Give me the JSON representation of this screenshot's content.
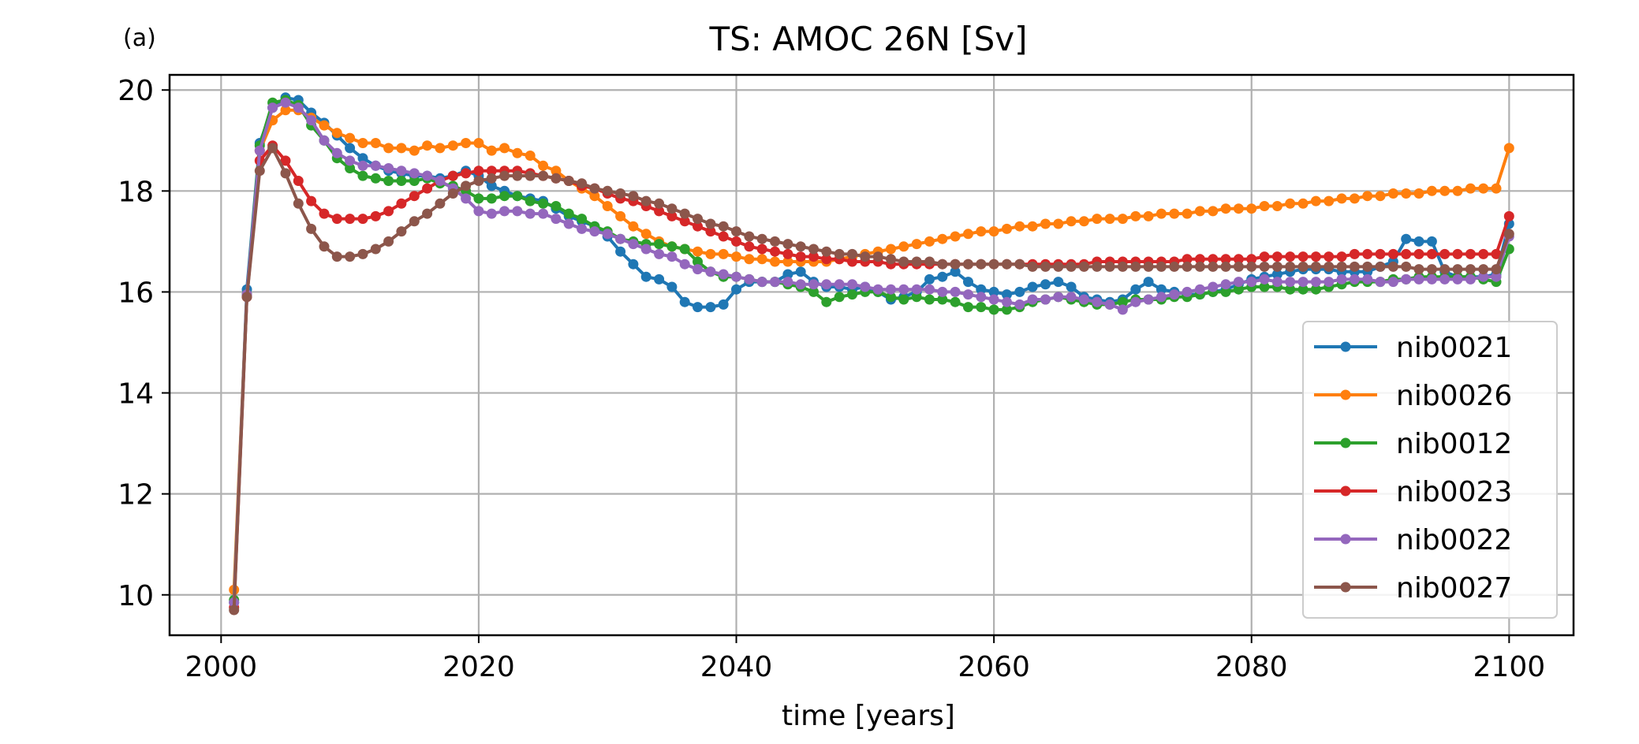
{
  "panel_label": "(a)",
  "chart_data": {
    "type": "line",
    "title": "TS: AMOC 26N [Sv]",
    "xlabel": "time [years]",
    "ylabel": "",
    "xlim": [
      1996,
      2105
    ],
    "ylim": [
      9.2,
      20.3
    ],
    "xticks": [
      2000,
      2020,
      2040,
      2060,
      2080,
      2100
    ],
    "yticks": [
      10,
      12,
      14,
      16,
      18,
      20
    ],
    "grid": true,
    "legend_position": "lower-right",
    "x_start": 2001,
    "x_end": 2100,
    "series": [
      {
        "name": "nib0021",
        "color": "#1f77b4",
        "values": [
          9.85,
          16.05,
          18.95,
          19.65,
          19.85,
          19.8,
          19.55,
          19.35,
          19.1,
          18.85,
          18.65,
          18.5,
          18.4,
          18.35,
          18.3,
          18.3,
          18.25,
          18.3,
          18.4,
          18.3,
          18.1,
          18.0,
          17.9,
          17.85,
          17.8,
          17.65,
          17.5,
          17.4,
          17.3,
          17.1,
          16.8,
          16.55,
          16.3,
          16.25,
          16.1,
          15.8,
          15.7,
          15.7,
          15.75,
          16.05,
          16.2,
          16.2,
          16.2,
          16.35,
          16.4,
          16.2,
          16.1,
          16.1,
          16.05,
          16.1,
          16.0,
          15.85,
          15.9,
          16.0,
          16.25,
          16.3,
          16.4,
          16.2,
          16.05,
          16.0,
          15.95,
          16.0,
          16.1,
          16.15,
          16.2,
          16.1,
          15.9,
          15.85,
          15.8,
          15.85,
          16.05,
          16.2,
          16.05,
          16.0,
          15.95,
          15.95,
          16.0,
          16.05,
          16.15,
          16.25,
          16.3,
          16.35,
          16.4,
          16.45,
          16.45,
          16.45,
          16.4,
          16.4,
          16.4,
          16.5,
          16.6,
          17.05,
          17.0,
          17.0,
          16.4,
          16.3,
          16.3,
          16.3,
          16.35,
          17.35
        ]
      },
      {
        "name": "nib0026",
        "color": "#ff7f0e",
        "values": [
          10.1,
          15.95,
          18.8,
          19.4,
          19.6,
          19.6,
          19.45,
          19.3,
          19.15,
          19.05,
          18.95,
          18.95,
          18.85,
          18.85,
          18.8,
          18.9,
          18.85,
          18.9,
          18.95,
          18.95,
          18.8,
          18.85,
          18.75,
          18.7,
          18.5,
          18.4,
          18.2,
          18.05,
          17.9,
          17.7,
          17.5,
          17.3,
          17.15,
          17.0,
          16.9,
          16.85,
          16.8,
          16.75,
          16.75,
          16.7,
          16.65,
          16.65,
          16.6,
          16.6,
          16.6,
          16.6,
          16.6,
          16.65,
          16.7,
          16.75,
          16.8,
          16.85,
          16.9,
          16.95,
          17.0,
          17.05,
          17.1,
          17.15,
          17.2,
          17.2,
          17.25,
          17.3,
          17.3,
          17.35,
          17.35,
          17.4,
          17.4,
          17.45,
          17.45,
          17.45,
          17.5,
          17.5,
          17.55,
          17.55,
          17.55,
          17.6,
          17.6,
          17.65,
          17.65,
          17.65,
          17.7,
          17.7,
          17.75,
          17.75,
          17.8,
          17.8,
          17.85,
          17.85,
          17.9,
          17.9,
          17.95,
          17.95,
          17.95,
          18.0,
          18.0,
          18.0,
          18.05,
          18.05,
          18.05,
          18.85
        ]
      },
      {
        "name": "nib0012",
        "color": "#2ca02c",
        "values": [
          9.9,
          15.95,
          18.9,
          19.75,
          19.8,
          19.7,
          19.3,
          19.0,
          18.65,
          18.45,
          18.3,
          18.25,
          18.2,
          18.2,
          18.2,
          18.25,
          18.15,
          18.1,
          18.0,
          17.85,
          17.85,
          17.9,
          17.9,
          17.8,
          17.75,
          17.7,
          17.55,
          17.45,
          17.3,
          17.2,
          17.05,
          17.0,
          16.95,
          16.95,
          16.9,
          16.85,
          16.6,
          16.4,
          16.3,
          16.3,
          16.25,
          16.2,
          16.2,
          16.15,
          16.1,
          16.0,
          15.8,
          15.9,
          15.95,
          16.0,
          16.0,
          15.9,
          15.85,
          15.9,
          15.85,
          15.85,
          15.8,
          15.7,
          15.7,
          15.65,
          15.65,
          15.7,
          15.8,
          15.85,
          15.9,
          15.85,
          15.8,
          15.75,
          15.75,
          15.8,
          15.85,
          15.85,
          15.85,
          15.9,
          15.9,
          15.95,
          16.0,
          16.0,
          16.05,
          16.1,
          16.1,
          16.1,
          16.05,
          16.05,
          16.05,
          16.1,
          16.15,
          16.2,
          16.2,
          16.2,
          16.25,
          16.25,
          16.3,
          16.3,
          16.3,
          16.3,
          16.3,
          16.25,
          16.2,
          16.85
        ]
      },
      {
        "name": "nib0023",
        "color": "#d62728",
        "values": [
          9.75,
          15.9,
          18.6,
          18.9,
          18.6,
          18.2,
          17.8,
          17.55,
          17.45,
          17.45,
          17.45,
          17.5,
          17.6,
          17.75,
          17.9,
          18.05,
          18.2,
          18.3,
          18.35,
          18.4,
          18.4,
          18.4,
          18.4,
          18.35,
          18.3,
          18.25,
          18.2,
          18.1,
          18.05,
          17.95,
          17.85,
          17.8,
          17.7,
          17.6,
          17.5,
          17.4,
          17.3,
          17.2,
          17.1,
          17.0,
          16.9,
          16.85,
          16.8,
          16.75,
          16.7,
          16.7,
          16.65,
          16.65,
          16.6,
          16.6,
          16.6,
          16.55,
          16.55,
          16.55,
          16.55,
          16.55,
          16.55,
          16.55,
          16.55,
          16.55,
          16.55,
          16.55,
          16.55,
          16.55,
          16.55,
          16.55,
          16.55,
          16.6,
          16.6,
          16.6,
          16.6,
          16.6,
          16.6,
          16.6,
          16.65,
          16.65,
          16.65,
          16.65,
          16.65,
          16.65,
          16.7,
          16.7,
          16.7,
          16.7,
          16.7,
          16.7,
          16.7,
          16.75,
          16.75,
          16.75,
          16.75,
          16.75,
          16.75,
          16.75,
          16.75,
          16.75,
          16.75,
          16.75,
          16.75,
          17.5
        ]
      },
      {
        "name": "nib0022",
        "color": "#9467bd",
        "values": [
          9.85,
          15.95,
          18.8,
          19.65,
          19.75,
          19.65,
          19.4,
          19.0,
          18.75,
          18.6,
          18.5,
          18.5,
          18.45,
          18.4,
          18.35,
          18.3,
          18.2,
          18.05,
          17.85,
          17.6,
          17.55,
          17.6,
          17.6,
          17.55,
          17.55,
          17.45,
          17.35,
          17.25,
          17.2,
          17.15,
          17.05,
          16.95,
          16.85,
          16.75,
          16.7,
          16.55,
          16.45,
          16.4,
          16.35,
          16.3,
          16.25,
          16.2,
          16.2,
          16.2,
          16.15,
          16.15,
          16.15,
          16.15,
          16.15,
          16.1,
          16.05,
          16.05,
          16.05,
          16.05,
          16.05,
          16.0,
          16.0,
          15.95,
          15.9,
          15.85,
          15.8,
          15.75,
          15.85,
          15.85,
          15.9,
          15.9,
          15.85,
          15.8,
          15.75,
          15.65,
          15.8,
          15.85,
          15.9,
          15.95,
          16.0,
          16.05,
          16.1,
          16.15,
          16.2,
          16.2,
          16.25,
          16.2,
          16.2,
          16.2,
          16.2,
          16.2,
          16.25,
          16.25,
          16.25,
          16.2,
          16.2,
          16.25,
          16.25,
          16.25,
          16.25,
          16.25,
          16.25,
          16.3,
          16.3,
          17.1
        ]
      },
      {
        "name": "nib0027",
        "color": "#8c564b",
        "values": [
          9.7,
          15.9,
          18.4,
          18.85,
          18.35,
          17.75,
          17.25,
          16.9,
          16.7,
          16.7,
          16.75,
          16.85,
          17.0,
          17.2,
          17.4,
          17.55,
          17.75,
          17.95,
          18.1,
          18.2,
          18.25,
          18.3,
          18.3,
          18.3,
          18.3,
          18.25,
          18.2,
          18.15,
          18.05,
          18.0,
          17.95,
          17.9,
          17.8,
          17.75,
          17.65,
          17.55,
          17.45,
          17.35,
          17.3,
          17.2,
          17.1,
          17.05,
          17.0,
          16.95,
          16.9,
          16.85,
          16.8,
          16.75,
          16.75,
          16.7,
          16.7,
          16.65,
          16.6,
          16.6,
          16.6,
          16.55,
          16.55,
          16.55,
          16.55,
          16.55,
          16.55,
          16.55,
          16.5,
          16.5,
          16.5,
          16.5,
          16.5,
          16.5,
          16.5,
          16.5,
          16.5,
          16.5,
          16.5,
          16.5,
          16.5,
          16.5,
          16.5,
          16.5,
          16.5,
          16.5,
          16.5,
          16.5,
          16.5,
          16.5,
          16.5,
          16.5,
          16.5,
          16.5,
          16.5,
          16.5,
          16.5,
          16.5,
          16.45,
          16.45,
          16.45,
          16.45,
          16.45,
          16.45,
          16.45,
          17.15
        ]
      }
    ]
  }
}
